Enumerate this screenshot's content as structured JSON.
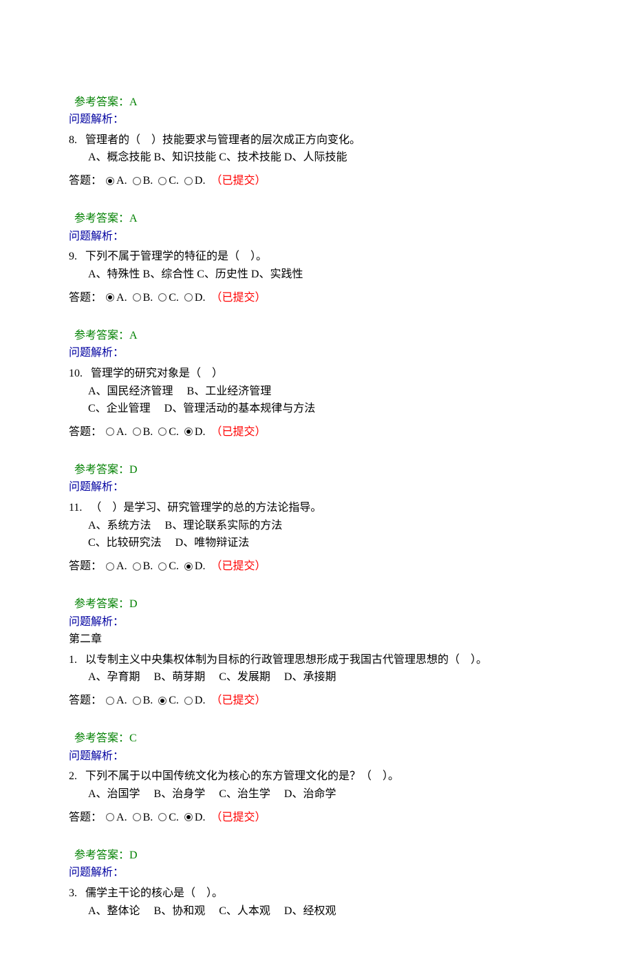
{
  "colors": {
    "green": "#008000",
    "blue": "#0000a0",
    "red": "#ff0000",
    "black": "#000000",
    "background": "#ffffff"
  },
  "typography": {
    "font_family": "SimSun",
    "font_size_pt": 12,
    "line_height": 1.6
  },
  "labels": {
    "reference_prefix": "参考答案：",
    "analysis": "问题解析：",
    "answer_prefix": "答题：",
    "option_a": "A.",
    "option_b": "B.",
    "option_c": "C.",
    "option_d": "D.",
    "submitted": "（已提交）",
    "chapter2": "第二章"
  },
  "questions": [
    {
      "show_stem": false,
      "reference": "A"
    },
    {
      "number": "8.",
      "stem": "管理者的（　）技能要求与管理者的层次成正方向变化。",
      "options_text": "A、概念技能 B、知识技能 C、技术技能 D、人际技能",
      "options_lines": 1,
      "selected": "A",
      "reference": "A"
    },
    {
      "number": "9.",
      "stem": "下列不属于管理学的特征的是（　）。",
      "options_text": "A、特殊性 B、综合性 C、历史性 D、实践性",
      "options_lines": 1,
      "selected": "A",
      "reference": "A"
    },
    {
      "number": "10.",
      "stem": "管理学的研究对象是（　）",
      "options_text_line1": "A、国民经济管理　 B、工业经济管理",
      "options_text_line2": "C、企业管理　 D、管理活动的基本规律与方法",
      "options_lines": 2,
      "selected": "D",
      "reference": "D"
    },
    {
      "number": "11.",
      "stem": "（　）是学习、研究管理学的总的方法论指导。",
      "options_text_line1": "A、系统方法　 B、理论联系实际的方法",
      "options_text_line2": "C、比较研究法　 D、唯物辩证法",
      "options_lines": 2,
      "selected": "D",
      "reference": "D"
    },
    {
      "chapter_break": true,
      "number": "1.",
      "stem": "以专制主义中央集权体制为目标的行政管理思想形成于我国古代管理思想的（　）。",
      "options_text": "A、孕育期　 B、萌芽期　 C、发展期　 D、承接期",
      "options_lines": 1,
      "selected": "C",
      "reference": "C"
    },
    {
      "number": "2.",
      "stem": "下列不属于以中国传统文化为核心的东方管理文化的是？（　）。",
      "options_text": "A、治国学　 B、治身学　 C、治生学　 D、治命学",
      "options_lines": 1,
      "selected": "D",
      "reference": "D"
    },
    {
      "number": "3.",
      "stem": "儒学主干论的核心是（　）。",
      "options_text": "A、整体论　 B、协和观　 C、人本观　 D、经权观",
      "options_lines": 1,
      "show_answer_row": false
    }
  ]
}
